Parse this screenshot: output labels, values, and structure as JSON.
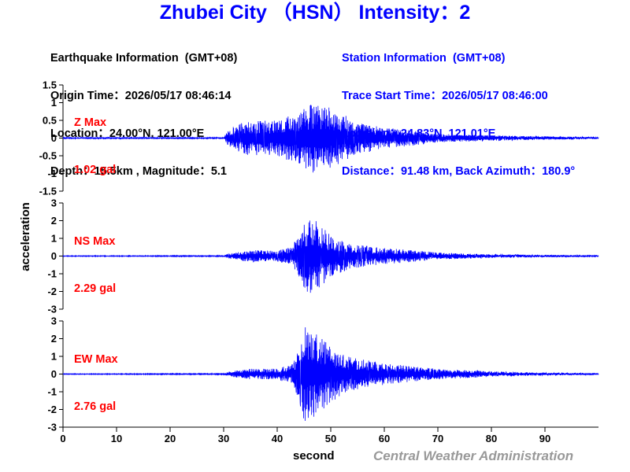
{
  "header": {
    "title": "Zhubei City （HSN） Intensity：2"
  },
  "earthquake_info": {
    "lines": [
      "Earthquake Information  (GMT+08)",
      "Origin Time：2026/05/17 08:46:14",
      "Location：24.00°N, 121.00°E",
      "Depth：15.5km , Magnitude：5.1"
    ]
  },
  "station_info": {
    "lines": [
      "Station Information  (GMT+08)",
      "Trace Start Time：2026/05/17 08:46:00",
      "Location：24.83°N, 121.01°E",
      "Distance：91.48 km, Back Azimuth：180.9°"
    ]
  },
  "footer": {
    "credit": "Central Weather Administration"
  },
  "chart_data": {
    "type": "line",
    "xlabel": "second",
    "ylabel": "acceleration",
    "xlim": [
      0,
      100
    ],
    "x_ticks": [
      0,
      10,
      20,
      30,
      40,
      50,
      60,
      70,
      80,
      90
    ],
    "grid": false,
    "line_color": "#0000ff",
    "panels": [
      {
        "name": "Z",
        "max_label": "Z Max",
        "max_value": "1.02 gal",
        "ylim": [
          -1.5,
          1.5
        ],
        "y_ticks": [
          "1.5",
          "1",
          "0.5",
          "0",
          "-0.5",
          "-1",
          "-1.5"
        ],
        "envelope_points": [
          [
            0,
            0.02
          ],
          [
            30,
            0.02
          ],
          [
            31,
            0.25
          ],
          [
            33,
            0.45
          ],
          [
            36,
            0.5
          ],
          [
            40,
            0.5
          ],
          [
            43,
            0.7
          ],
          [
            47,
            1.02
          ],
          [
            50,
            0.85
          ],
          [
            52,
            0.7
          ],
          [
            55,
            0.45
          ],
          [
            60,
            0.3
          ],
          [
            65,
            0.22
          ],
          [
            70,
            0.12
          ],
          [
            80,
            0.08
          ],
          [
            90,
            0.05
          ],
          [
            100,
            0.03
          ]
        ]
      },
      {
        "name": "NS",
        "max_label": "NS Max",
        "max_value": "2.29 gal",
        "ylim": [
          -3,
          3
        ],
        "y_ticks": [
          "3",
          "2",
          "1",
          "0",
          "-1",
          "-2",
          "-3"
        ],
        "envelope_points": [
          [
            0,
            0.02
          ],
          [
            30,
            0.03
          ],
          [
            31,
            0.15
          ],
          [
            35,
            0.35
          ],
          [
            40,
            0.3
          ],
          [
            43,
            0.6
          ],
          [
            44,
            1.4
          ],
          [
            46,
            2.29
          ],
          [
            48,
            1.8
          ],
          [
            50,
            1.2
          ],
          [
            53,
            0.8
          ],
          [
            56,
            0.6
          ],
          [
            60,
            0.45
          ],
          [
            65,
            0.35
          ],
          [
            70,
            0.2
          ],
          [
            80,
            0.1
          ],
          [
            90,
            0.07
          ],
          [
            100,
            0.04
          ]
        ]
      },
      {
        "name": "EW",
        "max_label": "EW Max",
        "max_value": "2.76 gal",
        "ylim": [
          -3,
          3
        ],
        "y_ticks": [
          "3",
          "2",
          "1",
          "0",
          "-1",
          "-2",
          "-3"
        ],
        "envelope_points": [
          [
            0,
            0.02
          ],
          [
            30,
            0.03
          ],
          [
            31,
            0.15
          ],
          [
            35,
            0.3
          ],
          [
            40,
            0.3
          ],
          [
            43,
            0.6
          ],
          [
            44,
            1.5
          ],
          [
            45,
            2.76
          ],
          [
            47,
            2.4
          ],
          [
            50,
            1.6
          ],
          [
            53,
            1.0
          ],
          [
            57,
            0.8
          ],
          [
            60,
            0.6
          ],
          [
            65,
            0.45
          ],
          [
            70,
            0.3
          ],
          [
            80,
            0.15
          ],
          [
            90,
            0.08
          ],
          [
            100,
            0.05
          ]
        ]
      }
    ]
  }
}
